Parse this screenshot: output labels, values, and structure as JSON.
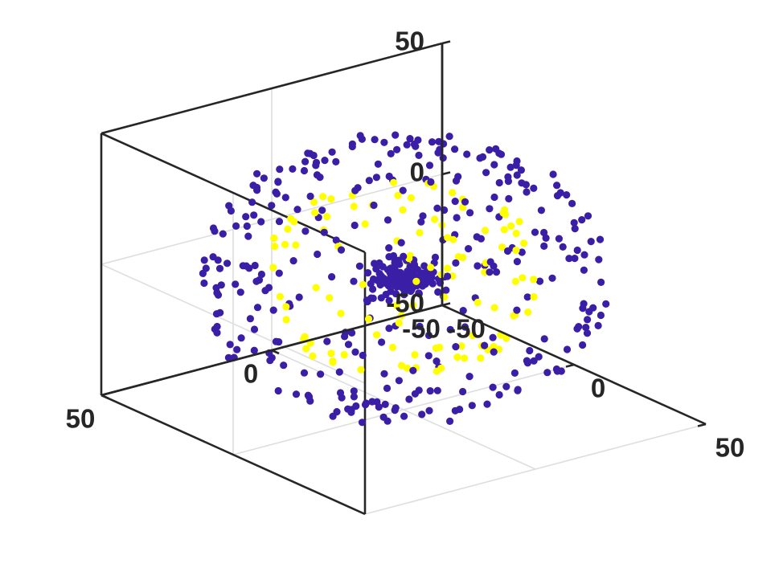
{
  "chart_data": {
    "type": "scatter3d",
    "title": "",
    "xlabel": "",
    "ylabel": "",
    "zlabel": "",
    "xlim": [
      -50,
      50
    ],
    "ylim": [
      -50,
      50
    ],
    "zlim": [
      -50,
      50
    ],
    "xticks": [
      -50,
      0,
      50
    ],
    "yticks": [
      -50,
      0,
      50
    ],
    "zticks": [
      -50,
      0,
      50
    ],
    "x_tick_labels": [
      "-50",
      "0",
      "50"
    ],
    "y_tick_labels": [
      "-50",
      "0",
      "50"
    ],
    "z_tick_labels": [
      "-50",
      "0",
      "50"
    ],
    "grid": true,
    "box": true,
    "view": {
      "azimuth": -37.5,
      "elevation": 30
    },
    "series": [
      {
        "color": "#3a1fa6",
        "marker": "filled-circle",
        "structure": [
          {
            "shape": "sphere",
            "center": [
              0,
              0,
              0
            ],
            "radius": 47,
            "points": 330
          },
          {
            "shape": "cluster",
            "center": [
              0,
              0,
              0
            ],
            "spread": 4,
            "points": 160
          }
        ]
      },
      {
        "color": "#ffff00",
        "marker": "filled-circle",
        "structure": [
          {
            "shape": "sphere",
            "center": [
              0,
              0,
              0
            ],
            "radius": 32,
            "points": 110
          }
        ]
      }
    ]
  }
}
